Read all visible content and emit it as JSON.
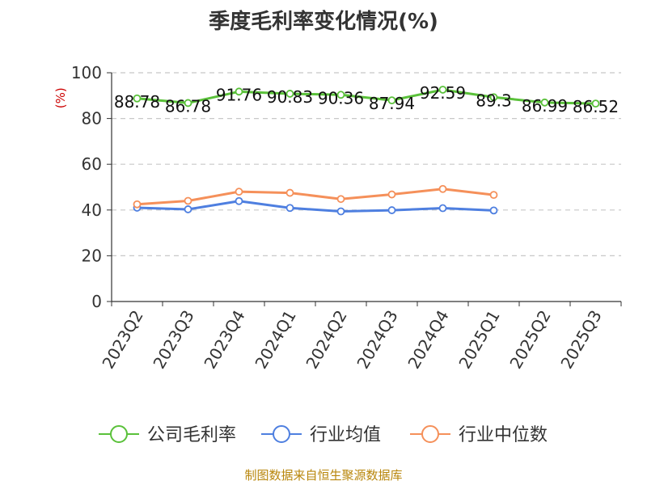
{
  "title": "季度毛利率变化情况(%)",
  "source": "制图数据来自恒生聚源数据库",
  "chart_data": {
    "type": "line",
    "ylabel": "(%)",
    "ylim": [
      0,
      100
    ],
    "yticks": [
      0,
      20,
      40,
      60,
      80,
      100
    ],
    "grid": true,
    "legend_position": "bottom",
    "categories": [
      "2023Q2",
      "2023Q3",
      "2023Q4",
      "2024Q1",
      "2024Q2",
      "2024Q3",
      "2024Q4",
      "2025Q1",
      "2025Q2",
      "2025Q3"
    ],
    "series": [
      {
        "name": "公司毛利率",
        "color": "#5ac13a",
        "values": [
          88.78,
          86.78,
          91.76,
          90.83,
          90.36,
          87.94,
          92.59,
          89.3,
          86.99,
          86.52
        ],
        "labels": [
          "88.78",
          "86.78",
          "91.76",
          "90.83",
          "90.36",
          "87.94",
          "92.59",
          "89.3",
          "86.99",
          "86.52"
        ]
      },
      {
        "name": "行业均值",
        "color": "#4e7fe0",
        "values": [
          41.0,
          40.3,
          43.9,
          40.9,
          39.4,
          39.9,
          40.8,
          39.8,
          null,
          null
        ]
      },
      {
        "name": "行业中位数",
        "color": "#f5905a",
        "values": [
          42.5,
          44.0,
          48.0,
          47.5,
          44.8,
          46.8,
          49.2,
          46.6,
          null,
          null
        ]
      }
    ]
  }
}
